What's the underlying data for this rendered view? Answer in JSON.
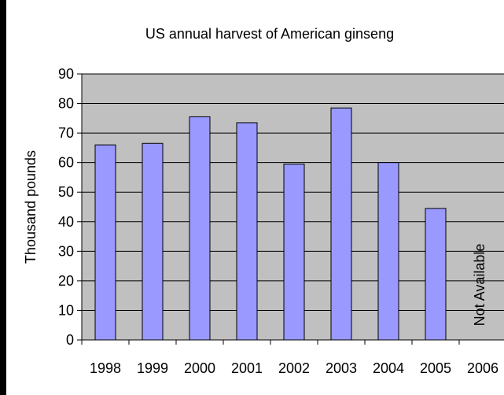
{
  "chart_data": {
    "type": "bar",
    "title": "US annual harvest of American ginseng",
    "xlabel": "",
    "ylabel": "Thousand pounds",
    "categories": [
      "1998",
      "1999",
      "2000",
      "2001",
      "2002",
      "2003",
      "2004",
      "2005",
      "2006"
    ],
    "values": [
      66,
      66.5,
      75.5,
      73.5,
      59.5,
      78.5,
      60,
      44.5,
      null
    ],
    "annotations": [
      {
        "category": "2006",
        "text": "Not Available",
        "orientation": "vertical"
      }
    ],
    "ylim": [
      0,
      90
    ],
    "yticks": [
      0,
      10,
      20,
      30,
      40,
      50,
      60,
      70,
      80,
      90
    ],
    "grid": true,
    "legend": "none",
    "colors": {
      "plot_background": "#c0c0c0",
      "bar_fill": "#9999ff",
      "bar_stroke": "#000000",
      "gridline": "#000000",
      "page_border": "#000000"
    }
  }
}
